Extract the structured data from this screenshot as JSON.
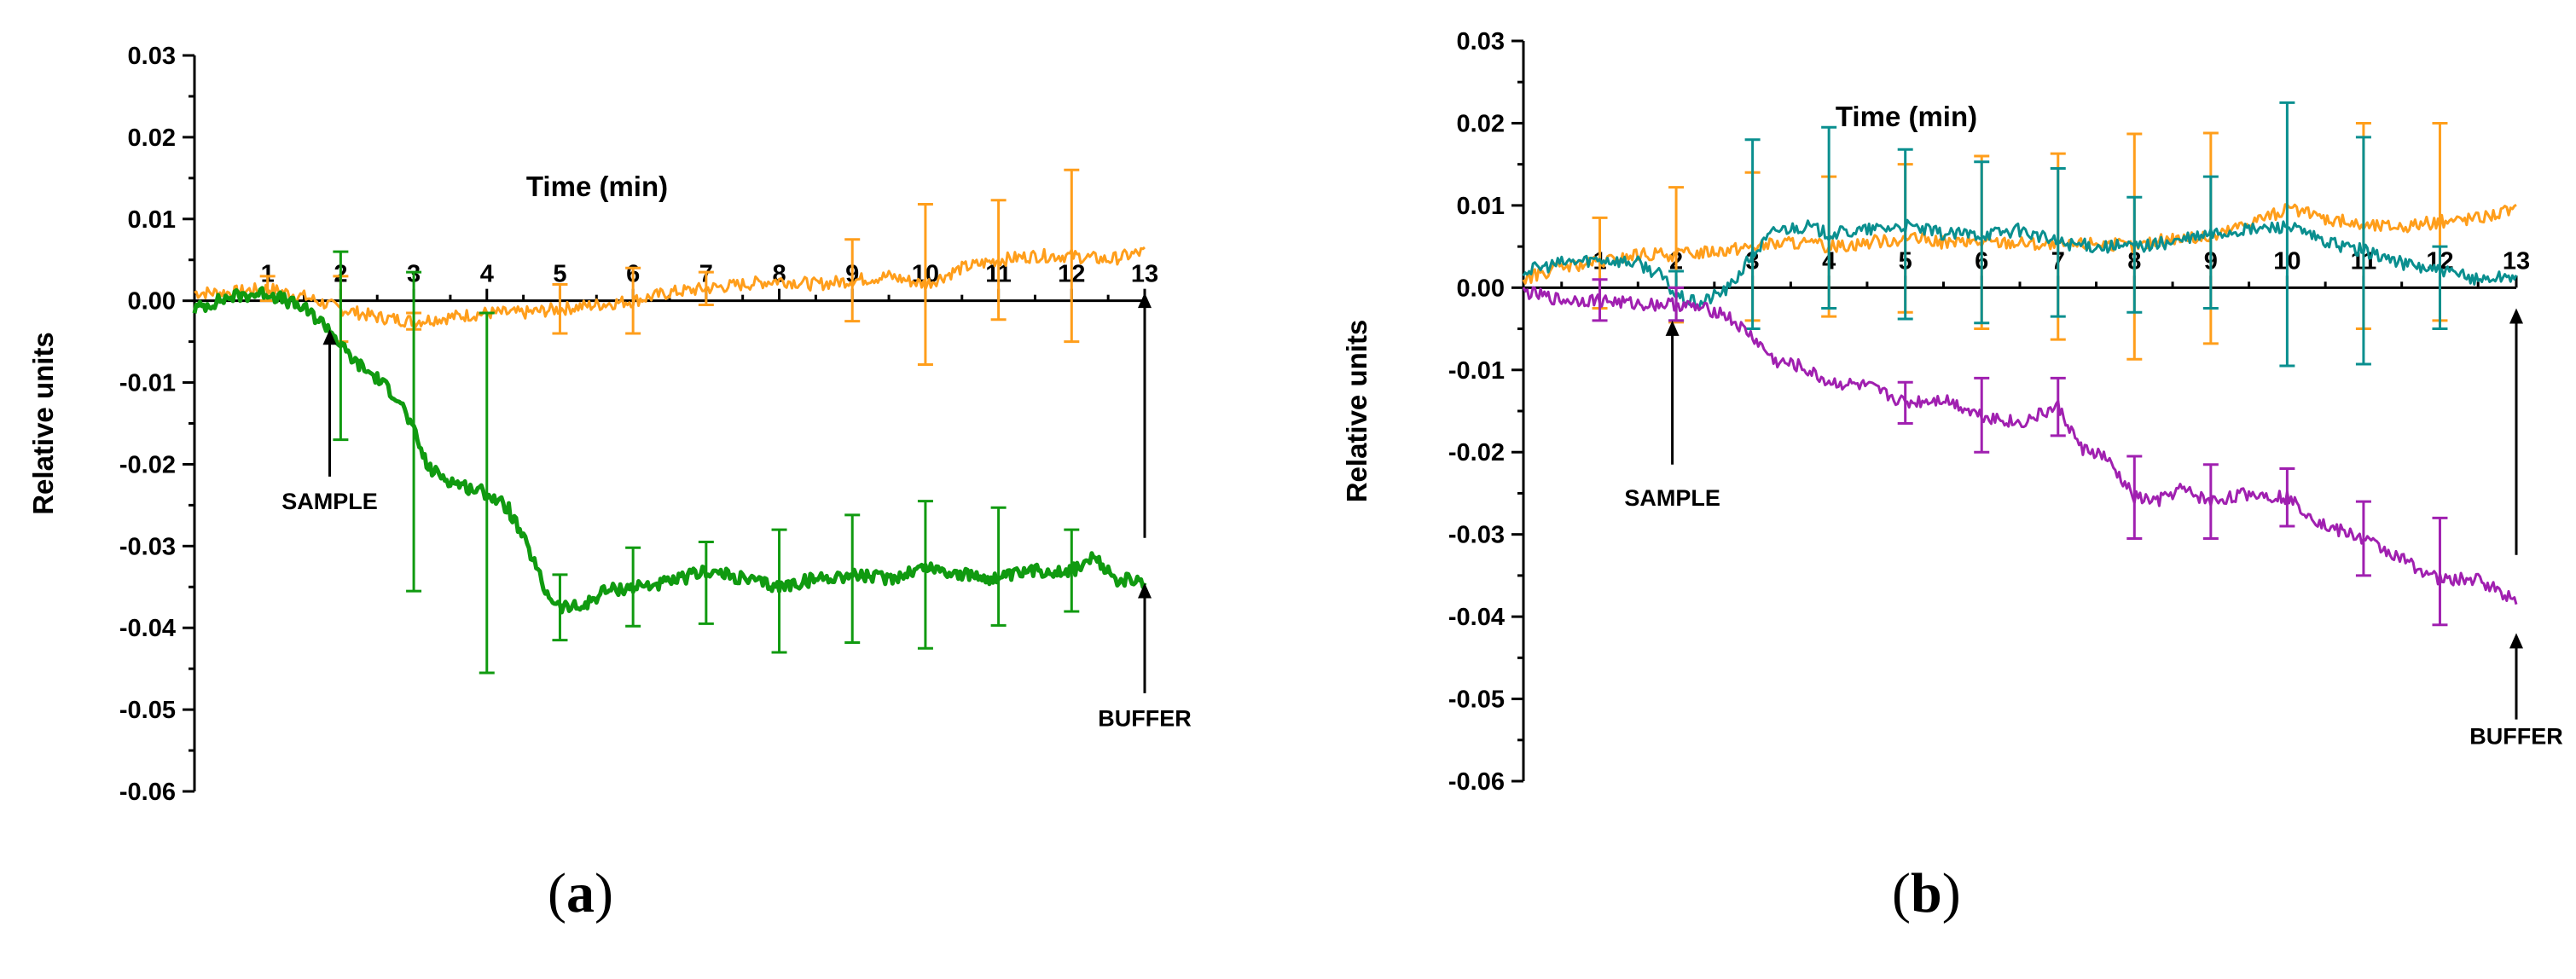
{
  "chart_data": [
    {
      "id": "a",
      "type": "line",
      "caption": {
        "open": "(",
        "letter": "a",
        "close": ")"
      },
      "ylabel": "Relative units",
      "xlabel": "Time (min)",
      "ylim": [
        -0.06,
        0.03
      ],
      "yticks": [
        "0.03",
        "0.02",
        "0.01",
        "0.00",
        "-0.01",
        "-0.02",
        "-0.03",
        "-0.04",
        "-0.05",
        "-0.06"
      ],
      "ytick_values": [
        0.03,
        0.02,
        0.01,
        0.0,
        -0.01,
        -0.02,
        -0.03,
        -0.04,
        -0.05,
        -0.06
      ],
      "xlim": [
        0,
        13
      ],
      "xticks": [
        "1",
        "2",
        "3",
        "4",
        "5",
        "6",
        "7",
        "8",
        "9",
        "10",
        "11",
        "12",
        "13"
      ],
      "xtick_values": [
        1,
        2,
        3,
        4,
        5,
        6,
        7,
        8,
        9,
        10,
        11,
        12,
        13
      ],
      "annotations": [
        {
          "text": "SAMPLE",
          "x": 1.85,
          "arrow_from": -0.0215,
          "arrow_to": -0.0035,
          "label_y": -0.0255,
          "label_anchor": "center"
        },
        {
          "text": "BUFFER",
          "x": 13.0,
          "arrow_from": -0.048,
          "arrow_to": -0.0345,
          "label_y": -0.052,
          "label_anchor": "center"
        },
        {
          "text": "",
          "x": 13.0,
          "arrow_from": -0.029,
          "arrow_to": 0.001,
          "label_y": 0,
          "label_anchor": "none"
        }
      ],
      "series": [
        {
          "name": "orange",
          "color": "#FF9E1B",
          "width": 3,
          "x": [
            0,
            0.5,
            1,
            1.5,
            2,
            2.5,
            3,
            3.5,
            4,
            4.5,
            5,
            5.5,
            6,
            6.5,
            7,
            7.5,
            8,
            8.5,
            9,
            9.5,
            10,
            10.5,
            11,
            11.5,
            12,
            12.5,
            13
          ],
          "y": [
            0.001,
            0.001,
            0.0015,
            0.0005,
            -0.001,
            -0.002,
            -0.0025,
            -0.002,
            -0.0015,
            -0.0015,
            -0.001,
            -0.0005,
            0.0,
            0.001,
            0.0015,
            0.002,
            0.0025,
            0.002,
            0.0025,
            0.003,
            0.002,
            0.004,
            0.005,
            0.0055,
            0.0055,
            0.005,
            0.006
          ],
          "errorbars": [
            {
              "x": 1,
              "y": 0.0015,
              "err": 0.0015
            },
            {
              "x": 2,
              "y": -0.001,
              "err": 0.004
            },
            {
              "x": 3,
              "y": -0.0025,
              "err": 0.001
            },
            {
              "x": 5,
              "y": -0.001,
              "err": 0.003
            },
            {
              "x": 6,
              "y": 0.0,
              "err": 0.004
            },
            {
              "x": 7,
              "y": 0.0015,
              "err": 0.002
            },
            {
              "x": 9,
              "y": 0.0025,
              "err": 0.005
            },
            {
              "x": 10,
              "y": 0.002,
              "err": 0.0098
            },
            {
              "x": 11,
              "y": 0.005,
              "err": 0.0073
            },
            {
              "x": 12,
              "y": 0.0055,
              "err": 0.0105
            }
          ]
        },
        {
          "name": "green",
          "color": "#109A10",
          "width": 5,
          "x": [
            0,
            0.5,
            1,
            1.5,
            1.8,
            1.9,
            2.0,
            2.2,
            2.5,
            2.8,
            3.0,
            3.2,
            3.5,
            3.8,
            4.0,
            4.3,
            4.6,
            4.8,
            5.0,
            5.3,
            5.6,
            6.0,
            6.5,
            7.0,
            7.5,
            8.0,
            8.5,
            9.0,
            9.5,
            10.0,
            10.5,
            11.0,
            11.5,
            12.0,
            12.3,
            12.6,
            13.0
          ],
          "y": [
            -0.001,
            0.0005,
            0.001,
            -0.001,
            -0.003,
            -0.004,
            -0.0055,
            -0.0075,
            -0.0095,
            -0.012,
            -0.016,
            -0.0205,
            -0.022,
            -0.023,
            -0.0235,
            -0.0255,
            -0.031,
            -0.0355,
            -0.0375,
            -0.0375,
            -0.0355,
            -0.035,
            -0.0345,
            -0.033,
            -0.034,
            -0.035,
            -0.034,
            -0.0335,
            -0.034,
            -0.0325,
            -0.0335,
            -0.034,
            -0.033,
            -0.033,
            -0.0315,
            -0.034,
            -0.0345
          ],
          "errorbars": [
            {
              "x": 2,
              "y": -0.0055,
              "err": 0.0115
            },
            {
              "x": 3,
              "y": -0.016,
              "err": 0.0195
            },
            {
              "x": 4,
              "y": -0.0235,
              "err": 0.022
            },
            {
              "x": 5,
              "y": -0.0375,
              "err": 0.004
            },
            {
              "x": 6,
              "y": -0.035,
              "err": 0.0048
            },
            {
              "x": 7,
              "y": -0.0345,
              "err": 0.005
            },
            {
              "x": 8,
              "y": -0.0355,
              "err": 0.0075
            },
            {
              "x": 9,
              "y": -0.034,
              "err": 0.0078
            },
            {
              "x": 10,
              "y": -0.0335,
              "err": 0.009
            },
            {
              "x": 11,
              "y": -0.0325,
              "err": 0.0072
            },
            {
              "x": 12,
              "y": -0.033,
              "err": 0.005
            }
          ]
        }
      ]
    },
    {
      "id": "b",
      "type": "line",
      "caption": {
        "open": "(",
        "letter": "b",
        "close": ")"
      },
      "ylabel": "Relative units",
      "xlabel": "Time (min)",
      "ylim": [
        -0.06,
        0.03
      ],
      "yticks": [
        "0.03",
        "0.02",
        "0.01",
        "0.00",
        "-0.01",
        "-0.02",
        "-0.03",
        "-0.04",
        "-0.05",
        "-0.06"
      ],
      "ytick_values": [
        0.03,
        0.02,
        0.01,
        0.0,
        -0.01,
        -0.02,
        -0.03,
        -0.04,
        -0.05,
        -0.06
      ],
      "xlim": [
        0,
        13
      ],
      "xticks": [
        "1",
        "2",
        "3",
        "4",
        "5",
        "6",
        "7",
        "8",
        "9",
        "10",
        "11",
        "12",
        "13"
      ],
      "xtick_values": [
        1,
        2,
        3,
        4,
        5,
        6,
        7,
        8,
        9,
        10,
        11,
        12,
        13
      ],
      "annotations": [
        {
          "text": "SAMPLE",
          "x": 1.95,
          "arrow_from": -0.0215,
          "arrow_to": -0.004,
          "label_y": -0.0265,
          "label_anchor": "center"
        },
        {
          "text": "BUFFER",
          "x": 13.0,
          "arrow_from": -0.0525,
          "arrow_to": -0.042,
          "label_y": -0.0555,
          "label_anchor": "center"
        },
        {
          "text": "",
          "x": 13.0,
          "arrow_from": -0.0325,
          "arrow_to": -0.0025,
          "label_y": 0,
          "label_anchor": "none"
        }
      ],
      "series": [
        {
          "name": "orange",
          "color": "#FF9E1B",
          "width": 3,
          "x": [
            0,
            0.5,
            1,
            1.5,
            2,
            2.5,
            3,
            3.5,
            4,
            4.5,
            5,
            5.5,
            6,
            6.5,
            7,
            7.5,
            8,
            8.5,
            9,
            9.5,
            10,
            10.5,
            11,
            11.5,
            12,
            12.5,
            13
          ],
          "y": [
            0.001,
            0.0025,
            0.003,
            0.004,
            0.004,
            0.0045,
            0.005,
            0.0055,
            0.005,
            0.0055,
            0.006,
            0.0055,
            0.0055,
            0.0055,
            0.005,
            0.0055,
            0.005,
            0.006,
            0.006,
            0.008,
            0.0095,
            0.0085,
            0.0075,
            0.0075,
            0.008,
            0.0085,
            0.0095
          ],
          "errorbars": [
            {
              "x": 1,
              "y": 0.003,
              "err": 0.0055
            },
            {
              "x": 2,
              "y": 0.004,
              "err": 0.0082
            },
            {
              "x": 3,
              "y": 0.005,
              "err": 0.009
            },
            {
              "x": 4,
              "y": 0.005,
              "err": 0.0085
            },
            {
              "x": 5,
              "y": 0.006,
              "err": 0.009
            },
            {
              "x": 6,
              "y": 0.0055,
              "err": 0.0105
            },
            {
              "x": 7,
              "y": 0.005,
              "err": 0.0113
            },
            {
              "x": 8,
              "y": 0.005,
              "err": 0.0137
            },
            {
              "x": 9,
              "y": 0.006,
              "err": 0.0128
            },
            {
              "x": 10,
              "y": 0.0095,
              "err": 0.0
            },
            {
              "x": 11,
              "y": 0.0075,
              "err": 0.0125
            },
            {
              "x": 12,
              "y": 0.008,
              "err": 0.012
            }
          ]
        },
        {
          "name": "teal",
          "color": "#0A8F8F",
          "width": 3,
          "x": [
            0,
            0.5,
            1,
            1.5,
            1.8,
            2.0,
            2.3,
            2.7,
            3.0,
            3.3,
            3.7,
            4.0,
            4.5,
            5.0,
            5.5,
            6.0,
            6.5,
            7.0,
            7.5,
            8.0,
            8.5,
            9.0,
            9.5,
            10.0,
            10.5,
            11.0,
            11.5,
            12.0,
            12.5,
            13.0
          ],
          "y": [
            0.002,
            0.003,
            0.0035,
            0.003,
            0.0015,
            -0.001,
            -0.002,
            0.0,
            0.004,
            0.007,
            0.0075,
            0.0065,
            0.007,
            0.0075,
            0.0065,
            0.0065,
            0.007,
            0.0055,
            0.005,
            0.005,
            0.0055,
            0.0065,
            0.007,
            0.0075,
            0.0055,
            0.0045,
            0.003,
            0.002,
            0.001,
            0.0015
          ],
          "errorbars": [
            {
              "x": 2,
              "y": -0.001,
              "err": 0.003
            },
            {
              "x": 3,
              "y": 0.0065,
              "err": 0.0115
            },
            {
              "x": 4,
              "y": 0.0085,
              "err": 0.011
            },
            {
              "x": 5,
              "y": 0.0065,
              "err": 0.0103
            },
            {
              "x": 6,
              "y": 0.0055,
              "err": 0.0098
            },
            {
              "x": 7,
              "y": 0.0055,
              "err": 0.009
            },
            {
              "x": 8,
              "y": 0.004,
              "err": 0.007
            },
            {
              "x": 9,
              "y": 0.0055,
              "err": 0.008
            },
            {
              "x": 10,
              "y": 0.0065,
              "err": 0.016
            },
            {
              "x": 11,
              "y": 0.0045,
              "err": 0.0138
            },
            {
              "x": 12,
              "y": 0.0,
              "err": 0.005
            }
          ]
        },
        {
          "name": "purple",
          "color": "#A020B0",
          "width": 3,
          "x": [
            0,
            0.5,
            1,
            1.5,
            2,
            2.3,
            2.6,
            3.0,
            3.3,
            3.6,
            4.0,
            4.5,
            5.0,
            5.5,
            6.0,
            6.5,
            7.0,
            7.3,
            7.6,
            8.0,
            8.3,
            8.6,
            9.0,
            9.5,
            10.0,
            10.5,
            11.0,
            11.5,
            12.0,
            12.5,
            13.0
          ],
          "y": [
            -0.0005,
            -0.0015,
            -0.0015,
            -0.002,
            -0.002,
            -0.0025,
            -0.003,
            -0.006,
            -0.009,
            -0.0095,
            -0.0115,
            -0.012,
            -0.014,
            -0.0135,
            -0.0155,
            -0.0165,
            -0.0145,
            -0.0195,
            -0.0205,
            -0.0255,
            -0.026,
            -0.0245,
            -0.026,
            -0.025,
            -0.0255,
            -0.029,
            -0.0305,
            -0.033,
            -0.0355,
            -0.0355,
            -0.038
          ],
          "errorbars": [
            {
              "x": 1,
              "y": -0.0015,
              "err": 0.0025
            },
            {
              "x": 2,
              "y": -0.002,
              "err": 0.002
            },
            {
              "x": 5,
              "y": -0.014,
              "err": 0.0025
            },
            {
              "x": 6,
              "y": -0.0155,
              "err": 0.0045
            },
            {
              "x": 7,
              "y": -0.0145,
              "err": 0.0035
            },
            {
              "x": 8,
              "y": -0.0255,
              "err": 0.005
            },
            {
              "x": 9,
              "y": -0.026,
              "err": 0.0045
            },
            {
              "x": 10,
              "y": -0.0255,
              "err": 0.0035
            },
            {
              "x": 11,
              "y": -0.0305,
              "err": 0.0045
            },
            {
              "x": 12,
              "y": -0.0345,
              "err": 0.0065
            }
          ]
        }
      ]
    }
  ]
}
